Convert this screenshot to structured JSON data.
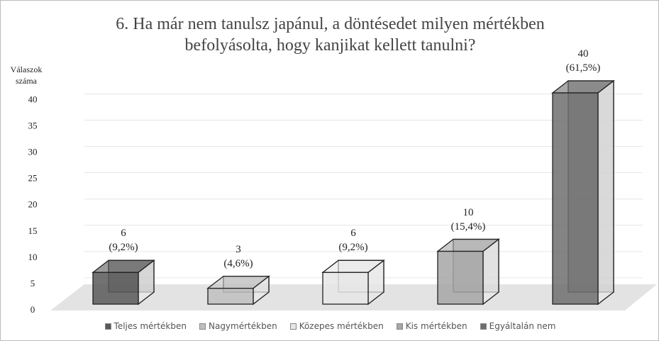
{
  "chart_data": {
    "type": "bar3d",
    "title": "6. Ha már nem tanulsz japánul, a döntésedet milyen mértékben\nbefolyásolta, hogy kanjikat kellett tanulni?",
    "y_label": "Válaszok\nszáma",
    "ylim": [
      0,
      40
    ],
    "yticks": [
      0,
      5,
      10,
      15,
      20,
      25,
      30,
      35,
      40
    ],
    "grid": true,
    "legend": "bottom",
    "series": [
      {
        "name": "Teljes mértékben",
        "color": "#595959",
        "values": [
          6
        ],
        "value_labels": [
          "6\n(9,2%)"
        ]
      },
      {
        "name": "Nagymértékben",
        "color": "#bfbfbf",
        "values": [
          3
        ],
        "value_labels": [
          "3\n(4,6%)"
        ]
      },
      {
        "name": "Közepes mértékben",
        "color": "#e6e6e6",
        "values": [
          6
        ],
        "value_labels": [
          "6\n(9,2%)"
        ]
      },
      {
        "name": "Kis mértékben",
        "color": "#a6a6a6",
        "values": [
          10
        ],
        "value_labels": [
          "10\n(15,4%)"
        ]
      },
      {
        "name": "Egyáltalán nem",
        "color": "#6e6e6e",
        "values": [
          40
        ],
        "value_labels": [
          "40\n(61,5%)"
        ]
      }
    ]
  }
}
